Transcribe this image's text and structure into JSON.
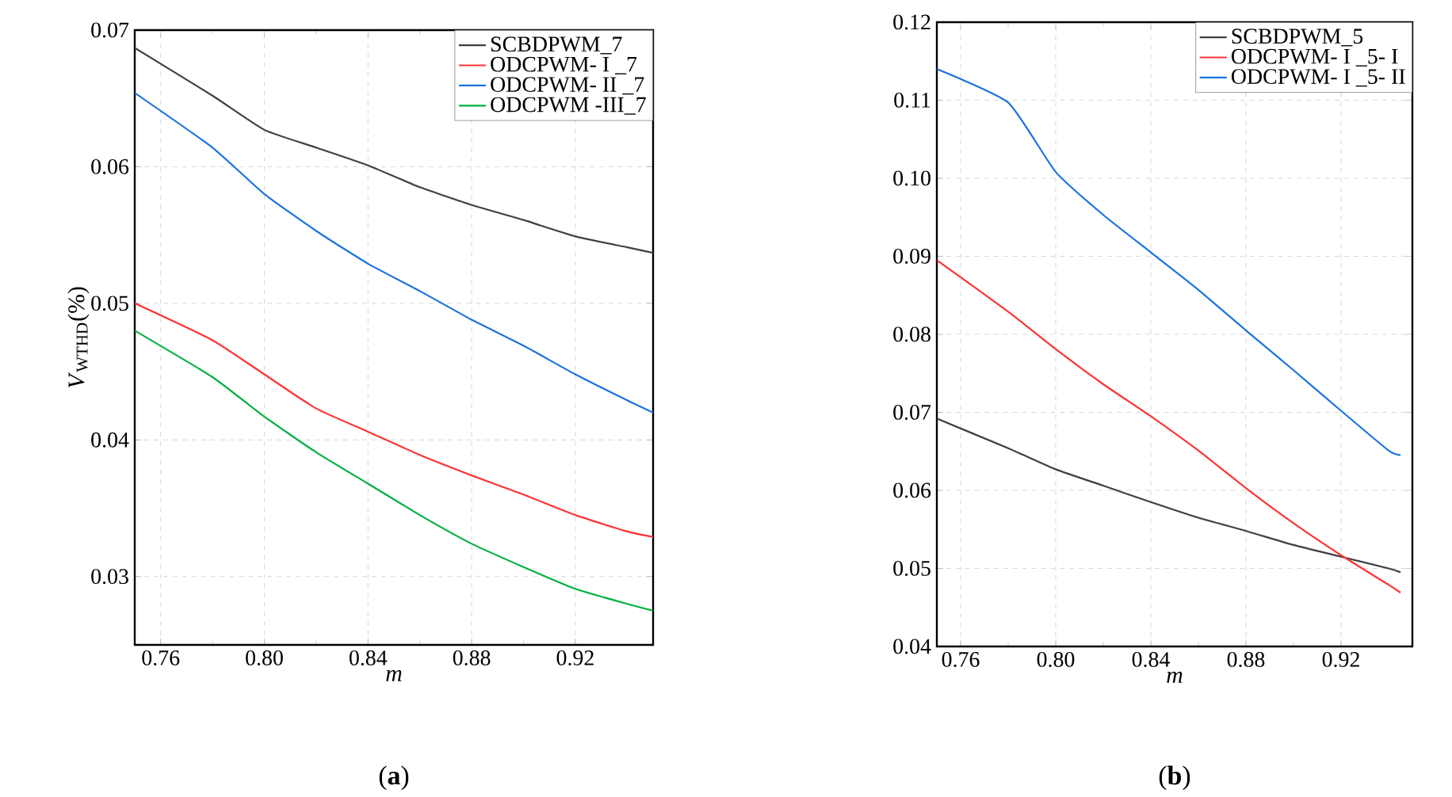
{
  "chart_data": [
    {
      "type": "line",
      "xlabel": "m",
      "ylabel": "*V*$_{WTHD}$(%)",
      "annotations": [
        "(**a**)"
      ],
      "x": [
        0.75,
        0.78,
        0.8,
        0.82,
        0.84,
        0.86,
        0.88,
        0.9,
        0.92,
        0.94,
        0.95
      ],
      "series": [
        {
          "name": "SCBDPWM_7",
          "color": "#404040",
          "values": [
            0.0687,
            0.0652,
            0.0627,
            0.0614,
            0.0601,
            0.0585,
            0.0572,
            0.0561,
            0.0549,
            0.0541,
            0.0537
          ]
        },
        {
          "name": "ODCPWM- I _7",
          "color": "#ff3333",
          "values": [
            0.05,
            0.0473,
            0.0448,
            0.0423,
            0.0406,
            0.0389,
            0.0374,
            0.036,
            0.0345,
            0.0333,
            0.0329
          ]
        },
        {
          "name": "ODCPWM- II _7",
          "color": "#1a73e0",
          "values": [
            0.0654,
            0.0614,
            0.058,
            0.0553,
            0.0529,
            0.0509,
            0.0488,
            0.0469,
            0.0448,
            0.0429,
            0.042
          ]
        },
        {
          "name": "ODCPWM -III_7",
          "color": "#00b040",
          "values": [
            0.048,
            0.0446,
            0.0417,
            0.0391,
            0.0368,
            0.0345,
            0.0324,
            0.0307,
            0.0291,
            0.028,
            0.0275
          ]
        }
      ],
      "xlim": [
        0.75,
        0.95
      ],
      "xticks": [
        0.76,
        {
          "value": 0.8,
          "label": "0.80"
        },
        0.84,
        0.88,
        0.92
      ],
      "ylim": [
        0.025,
        0.07
      ],
      "yticks": [
        0.03,
        0.04,
        0.05,
        0.06,
        0.07
      ],
      "grid": true,
      "legend": "top right",
      "line_style": "solid",
      "marker": "none"
    },
    {
      "type": "line",
      "xlabel": "m",
      "annotations": [
        "(**b**)"
      ],
      "x": [
        0.75,
        0.78,
        0.8,
        0.82,
        0.84,
        0.86,
        0.88,
        0.9,
        0.92,
        0.94,
        0.945
      ],
      "series": [
        {
          "name": "SCBDPWM_5",
          "color": "#404040",
          "values": [
            0.0692,
            0.0654,
            0.0627,
            0.0606,
            0.0585,
            0.0565,
            0.0548,
            0.053,
            0.0515,
            0.05,
            0.0495
          ]
        },
        {
          "name": "ODCPWM- I _5- I",
          "color": "#ff3333",
          "values": [
            0.0895,
            0.0829,
            0.0781,
            0.0736,
            0.0695,
            0.0651,
            0.0603,
            0.0558,
            0.0517,
            0.0479,
            0.0469
          ]
        },
        {
          "name": "ODCPWM- I _5- II",
          "color": "#1a73e0",
          "values": [
            0.114,
            0.1097,
            0.1008,
            0.0953,
            0.0905,
            0.0857,
            0.0805,
            0.0754,
            0.0702,
            0.0651,
            0.0645
          ]
        }
      ],
      "xlim": [
        0.75,
        0.95
      ],
      "xticks": [
        0.76,
        {
          "value": 0.8,
          "label": "0.80"
        },
        0.84,
        0.88,
        0.92
      ],
      "ylim": [
        0.04,
        0.12
      ],
      "yticks": [
        0.04,
        0.05,
        0.06,
        0.07,
        0.08,
        0.09,
        {
          "value": 0.1,
          "label": "0.10"
        },
        0.11,
        0.12
      ],
      "grid": true,
      "legend": "top right",
      "line_style": "solid",
      "marker": "none"
    }
  ]
}
